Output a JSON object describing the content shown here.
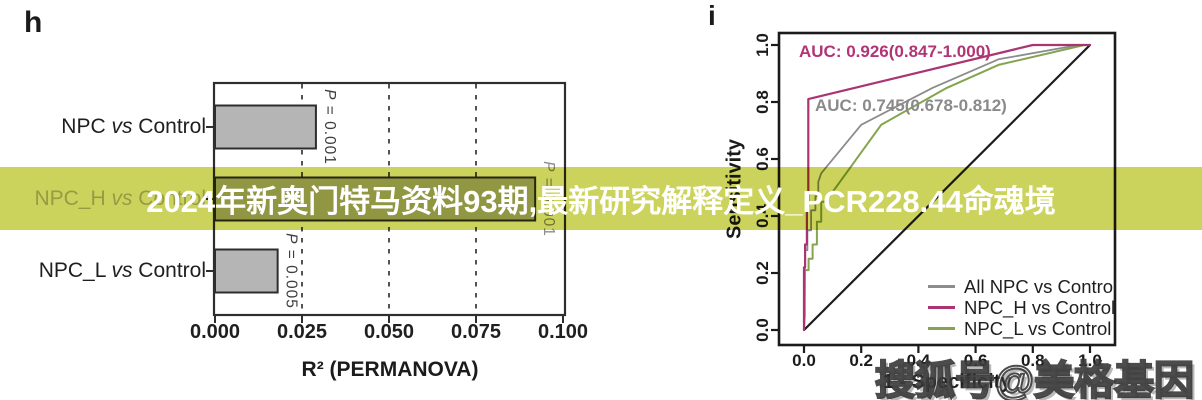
{
  "figure": {
    "panel_h_label": "h",
    "panel_i_label": "i"
  },
  "chart_data": [
    {
      "panel": "h",
      "type": "bar",
      "orientation": "horizontal",
      "xlabel": "R² (PERMANOVA)",
      "categories": [
        "NPC vs Control",
        "NPC_H vs Control",
        "NPC_L vs Control"
      ],
      "values": [
        0.029,
        0.092,
        0.018
      ],
      "bar_annotations": [
        "P = 0.001",
        "P = 0.001",
        "P = 0.005"
      ],
      "x_ticks": [
        0,
        0.025,
        0.05,
        0.075,
        0.1
      ],
      "x_tick_labels": [
        "0.000",
        "0.025",
        "0.050",
        "0.075",
        "0.100"
      ],
      "xlim": [
        0,
        0.1
      ],
      "grid": "vertical-dashed",
      "bar_color": "#b5b5b5",
      "bar_stroke": "#2e2e2e"
    },
    {
      "panel": "i",
      "type": "line",
      "xlabel": "1 - Specificity",
      "ylabel": "Sensitivity",
      "x_ticks": [
        0,
        0.2,
        0.4,
        0.6,
        0.8,
        1.0
      ],
      "x_tick_labels": [
        "0.0",
        "0.2",
        "0.4",
        "0.6",
        "0.8",
        "1.0"
      ],
      "y_ticks": [
        0,
        0.2,
        0.4,
        0.6,
        0.8,
        1.0
      ],
      "y_tick_labels": [
        "0.0",
        "0.2",
        "0.4",
        "0.6",
        "0.8",
        "1.0"
      ],
      "xlim": [
        0,
        1
      ],
      "ylim": [
        0,
        1
      ],
      "annotations": [
        {
          "text": "AUC: 0.926(0.847-1.000)",
          "series": "NPC_H vs Control",
          "color": "#b23476"
        },
        {
          "text": "AUC: 0.745(0.678-0.812)",
          "series": "All NPC vs Control",
          "color": "#8a8a8a"
        }
      ],
      "series": [
        {
          "name": "All NPC vs Control",
          "color": "#8c8c8c",
          "width": 1.8,
          "points": [
            [
              0,
              0
            ],
            [
              0.003,
              0.05
            ],
            [
              0.003,
              0.28
            ],
            [
              0.012,
              0.28
            ],
            [
              0.012,
              0.35
            ],
            [
              0.025,
              0.35
            ],
            [
              0.025,
              0.42
            ],
            [
              0.04,
              0.42
            ],
            [
              0.04,
              0.47
            ],
            [
              0.05,
              0.47
            ],
            [
              0.05,
              0.52
            ],
            [
              0.06,
              0.55
            ],
            [
              0.2,
              0.72
            ],
            [
              0.45,
              0.85
            ],
            [
              0.68,
              0.95
            ],
            [
              0.96,
              1
            ],
            [
              1,
              1
            ]
          ]
        },
        {
          "name": "NPC_L vs Control",
          "color": "#85a44f",
          "width": 2,
          "points": [
            [
              0,
              0
            ],
            [
              0.004,
              0.21
            ],
            [
              0.016,
              0.21
            ],
            [
              0.016,
              0.25
            ],
            [
              0.03,
              0.25
            ],
            [
              0.03,
              0.3
            ],
            [
              0.045,
              0.3
            ],
            [
              0.045,
              0.38
            ],
            [
              0.06,
              0.38
            ],
            [
              0.06,
              0.45
            ],
            [
              0.075,
              0.45
            ],
            [
              0.27,
              0.72
            ],
            [
              0.5,
              0.85
            ],
            [
              0.68,
              0.93
            ],
            [
              0.98,
              1
            ],
            [
              1,
              1
            ]
          ]
        },
        {
          "name": "reference (chance line)",
          "color": "#1c1c1c",
          "width": 2.2,
          "points": [
            [
              0,
              0
            ],
            [
              1,
              1
            ]
          ]
        },
        {
          "name": "NPC_H vs Control",
          "color": "#ab3572",
          "width": 2.2,
          "points": [
            [
              0,
              0
            ],
            [
              0,
              0.22
            ],
            [
              0.004,
              0.22
            ],
            [
              0.004,
              0.3
            ],
            [
              0.01,
              0.3
            ],
            [
              0.01,
              0.45
            ],
            [
              0.015,
              0.45
            ],
            [
              0.015,
              0.81
            ],
            [
              0.8,
              1
            ],
            [
              1,
              1
            ]
          ]
        }
      ],
      "legend": {
        "position": "bottom-right",
        "entries": [
          {
            "label": "All NPC vs Control",
            "color": "#8c8c8c"
          },
          {
            "label": "NPC_H vs Control",
            "color": "#ab3572"
          },
          {
            "label": "NPC_L vs Control",
            "color": "#85a44f"
          }
        ]
      }
    }
  ],
  "overlays": {
    "banner": {
      "text": "2024年新奥门特马资料93期,最新研究解释定义_PCR228.44命魂境",
      "bg_color": "#ccd35c",
      "text_color": "#ffffff"
    },
    "watermark": {
      "text": "搜狐号@美格基因"
    }
  }
}
